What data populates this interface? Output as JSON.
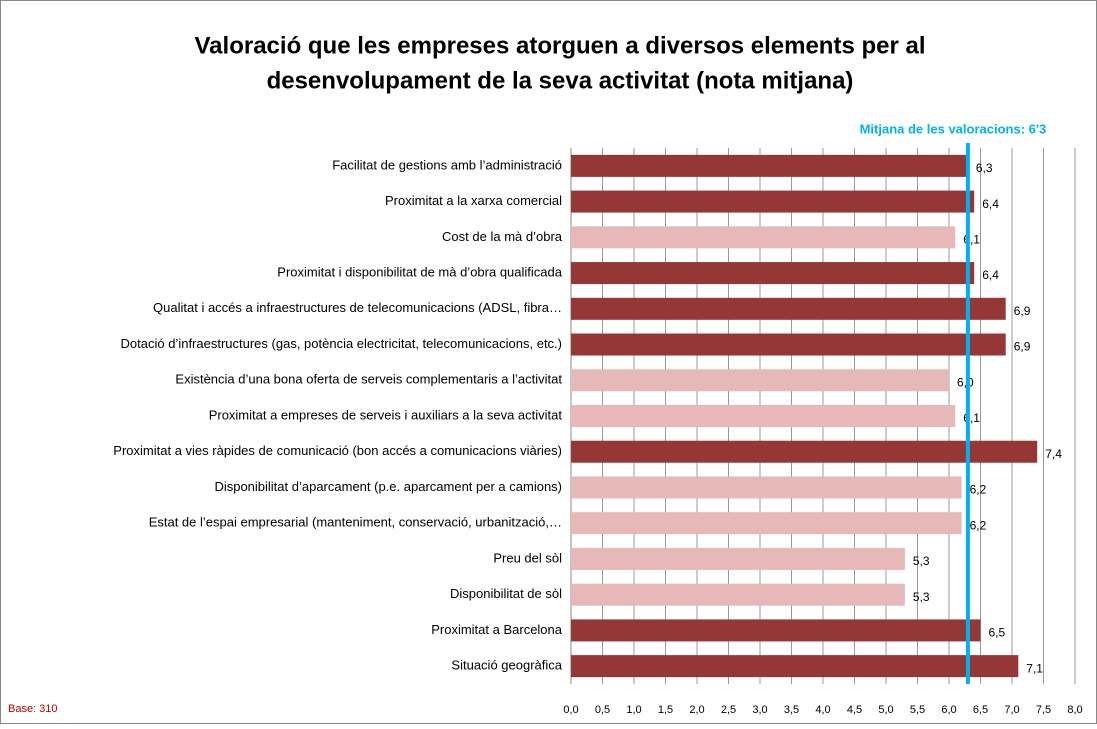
{
  "chart_data": {
    "type": "barh",
    "title": [
      "Valoració que les empreses atorguen a diversos elements per al",
      "desenvolupament de la seva activitat (nota mitjana)"
    ],
    "categories": [
      "Facilitat de gestions amb l’administració",
      "Proximitat a la xarxa comercial",
      "Cost de la mà d’obra",
      "Proximitat i disponibilitat de mà d’obra qualificada",
      "Qualitat i accés a infraestructures de telecomunicacions (ADSL, fibra…",
      "Dotació d’infraestructures (gas, potència electricitat, telecomunicacions, etc.)",
      "Existència d’una bona oferta de serveis complementaris a l’activitat",
      "Proximitat a empreses de serveis i auxiliars a la seva activitat",
      "Proximitat a vies ràpides de comunicació (bon accés a comunicacions viàries)",
      "Disponibilitat d’aparcament (p.e. aparcament per a camions)",
      "Estat de l’espai empresarial (manteniment, conservació, urbanització,…",
      "Preu del sòl",
      "Disponibilitat de sòl",
      "Proximitat a Barcelona",
      "Situació geogràfica"
    ],
    "values": [
      6.3,
      6.4,
      6.1,
      6.4,
      6.9,
      6.9,
      6.0,
      6.1,
      7.4,
      6.2,
      6.2,
      5.3,
      5.3,
      6.5,
      7.1
    ],
    "value_labels": [
      "6,3",
      "6,4",
      "6,1",
      "6,4",
      "6,9",
      "6,9",
      "6,0",
      "6,1",
      "7,4",
      "6,2",
      "6,2",
      "5,3",
      "5,3",
      "6,5",
      "7,1"
    ],
    "colors": [
      "#953735",
      "#953735",
      "#e6b9b8",
      "#953735",
      "#953735",
      "#953735",
      "#e6b9b8",
      "#e6b9b8",
      "#953735",
      "#e6b9b8",
      "#e6b9b8",
      "#e6b9b8",
      "#e6b9b8",
      "#953735",
      "#953735"
    ],
    "xlim": [
      0,
      8
    ],
    "xticks": [
      {
        "value": 0,
        "label": "0,0"
      },
      {
        "value": 0.5,
        "label": "0,5"
      },
      {
        "value": 1,
        "label": "1,0"
      },
      {
        "value": 1.5,
        "label": "1,5"
      },
      {
        "value": 2,
        "label": "2,0"
      },
      {
        "value": 2.5,
        "label": "2,5"
      },
      {
        "value": 3,
        "label": "3,0"
      },
      {
        "value": 3.5,
        "label": "3,5"
      },
      {
        "value": 4,
        "label": "4,0"
      },
      {
        "value": 4.5,
        "label": "4,5"
      },
      {
        "value": 5,
        "label": "5,0"
      },
      {
        "value": 5.5,
        "label": "5,5"
      },
      {
        "value": 6,
        "label": "6,0"
      },
      {
        "value": 6.5,
        "label": "6,5"
      },
      {
        "value": 7,
        "label": "7,0"
      },
      {
        "value": 7.5,
        "label": "7,5"
      },
      {
        "value": 8,
        "label": "8,0"
      }
    ],
    "grid": true,
    "reference_line": {
      "value": 6.3,
      "label": "Mitjana de les valoracions: 6'3",
      "color": "#00b0f0"
    },
    "footnote": "Base: 310"
  }
}
